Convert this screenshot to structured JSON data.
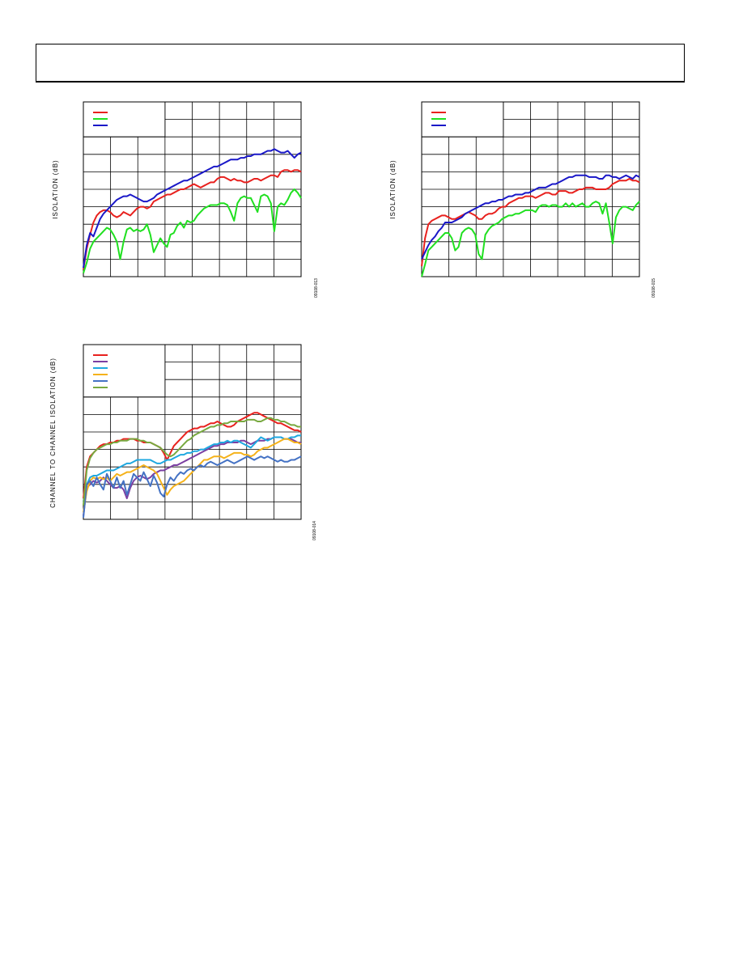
{
  "chart_data": [
    {
      "type": "line",
      "title": "",
      "xlabel": "",
      "ylabel": "ISOLATION (dB)",
      "figure_id": "09108-013",
      "legend_position": "top-left",
      "grid": true,
      "x_divisions": 8,
      "y_divisions": 10,
      "series": [
        {
          "color": "#e8211e",
          "values": [
            0.04,
            0.16,
            0.24,
            0.31,
            0.35,
            0.37,
            0.38,
            0.38,
            0.37,
            0.35,
            0.34,
            0.35,
            0.37,
            0.36,
            0.35,
            0.37,
            0.39,
            0.4,
            0.4,
            0.39,
            0.4,
            0.43,
            0.44,
            0.45,
            0.46,
            0.47,
            0.47,
            0.48,
            0.49,
            0.5,
            0.5,
            0.51,
            0.52,
            0.53,
            0.52,
            0.51,
            0.52,
            0.53,
            0.54,
            0.54,
            0.56,
            0.57,
            0.57,
            0.56,
            0.55,
            0.56,
            0.55,
            0.55,
            0.54,
            0.54,
            0.55,
            0.56,
            0.56,
            0.55,
            0.56,
            0.57,
            0.58,
            0.58,
            0.57,
            0.6,
            0.61,
            0.61,
            0.6,
            0.61,
            0.61,
            0.6
          ]
        },
        {
          "color": "#20e020",
          "values": [
            0.02,
            0.08,
            0.16,
            0.2,
            0.22,
            0.24,
            0.26,
            0.28,
            0.27,
            0.24,
            0.2,
            0.1,
            0.2,
            0.27,
            0.28,
            0.26,
            0.27,
            0.26,
            0.27,
            0.3,
            0.24,
            0.14,
            0.18,
            0.22,
            0.19,
            0.17,
            0.24,
            0.25,
            0.29,
            0.31,
            0.28,
            0.32,
            0.31,
            0.32,
            0.35,
            0.37,
            0.39,
            0.4,
            0.41,
            0.41,
            0.41,
            0.42,
            0.42,
            0.41,
            0.37,
            0.32,
            0.42,
            0.45,
            0.46,
            0.45,
            0.45,
            0.41,
            0.37,
            0.46,
            0.47,
            0.46,
            0.42,
            0.26,
            0.4,
            0.42,
            0.41,
            0.44,
            0.48,
            0.5,
            0.48,
            0.45
          ]
        },
        {
          "color": "#1a18c8",
          "values": [
            0.05,
            0.18,
            0.25,
            0.23,
            0.28,
            0.33,
            0.36,
            0.38,
            0.4,
            0.42,
            0.44,
            0.45,
            0.46,
            0.46,
            0.47,
            0.46,
            0.45,
            0.44,
            0.43,
            0.43,
            0.44,
            0.45,
            0.47,
            0.48,
            0.49,
            0.5,
            0.51,
            0.52,
            0.53,
            0.54,
            0.55,
            0.55,
            0.56,
            0.57,
            0.58,
            0.59,
            0.6,
            0.61,
            0.62,
            0.63,
            0.63,
            0.64,
            0.65,
            0.66,
            0.67,
            0.67,
            0.67,
            0.68,
            0.68,
            0.69,
            0.69,
            0.7,
            0.7,
            0.7,
            0.71,
            0.72,
            0.72,
            0.73,
            0.72,
            0.71,
            0.71,
            0.72,
            0.7,
            0.68,
            0.7,
            0.71
          ]
        }
      ]
    },
    {
      "type": "line",
      "title": "",
      "xlabel": "",
      "ylabel": "ISOLATION (dB)",
      "figure_id": "09108-015",
      "legend_position": "top-left",
      "grid": true,
      "x_divisions": 8,
      "y_divisions": 10,
      "series": [
        {
          "color": "#e8211e",
          "values": [
            0.06,
            0.22,
            0.3,
            0.32,
            0.33,
            0.34,
            0.35,
            0.35,
            0.34,
            0.33,
            0.33,
            0.34,
            0.35,
            0.36,
            0.37,
            0.36,
            0.35,
            0.33,
            0.33,
            0.35,
            0.36,
            0.36,
            0.37,
            0.39,
            0.4,
            0.4,
            0.42,
            0.43,
            0.44,
            0.45,
            0.45,
            0.46,
            0.46,
            0.46,
            0.45,
            0.46,
            0.47,
            0.48,
            0.48,
            0.47,
            0.47,
            0.49,
            0.49,
            0.49,
            0.48,
            0.48,
            0.49,
            0.5,
            0.5,
            0.51,
            0.51,
            0.51,
            0.5,
            0.5,
            0.5,
            0.5,
            0.51,
            0.53,
            0.54,
            0.55,
            0.55,
            0.55,
            0.56,
            0.55,
            0.55,
            0.54
          ]
        },
        {
          "color": "#20e020",
          "values": [
            0.0,
            0.07,
            0.15,
            0.17,
            0.19,
            0.21,
            0.23,
            0.25,
            0.25,
            0.22,
            0.15,
            0.17,
            0.25,
            0.27,
            0.28,
            0.27,
            0.24,
            0.13,
            0.1,
            0.24,
            0.27,
            0.29,
            0.3,
            0.31,
            0.33,
            0.34,
            0.35,
            0.35,
            0.36,
            0.36,
            0.37,
            0.38,
            0.38,
            0.38,
            0.37,
            0.4,
            0.41,
            0.41,
            0.4,
            0.41,
            0.41,
            0.4,
            0.4,
            0.42,
            0.4,
            0.42,
            0.4,
            0.41,
            0.42,
            0.4,
            0.4,
            0.42,
            0.43,
            0.42,
            0.36,
            0.42,
            0.31,
            0.19,
            0.34,
            0.38,
            0.4,
            0.4,
            0.39,
            0.38,
            0.41,
            0.43
          ]
        },
        {
          "color": "#1a18c8",
          "values": [
            0.1,
            0.14,
            0.18,
            0.21,
            0.23,
            0.26,
            0.28,
            0.31,
            0.31,
            0.31,
            0.32,
            0.33,
            0.34,
            0.36,
            0.37,
            0.38,
            0.39,
            0.4,
            0.41,
            0.42,
            0.42,
            0.43,
            0.43,
            0.44,
            0.44,
            0.45,
            0.46,
            0.46,
            0.47,
            0.47,
            0.47,
            0.48,
            0.48,
            0.49,
            0.5,
            0.51,
            0.51,
            0.51,
            0.52,
            0.53,
            0.53,
            0.54,
            0.55,
            0.56,
            0.57,
            0.57,
            0.58,
            0.58,
            0.58,
            0.58,
            0.57,
            0.57,
            0.57,
            0.56,
            0.56,
            0.58,
            0.58,
            0.57,
            0.57,
            0.56,
            0.57,
            0.58,
            0.57,
            0.56,
            0.58,
            0.57
          ]
        }
      ]
    },
    {
      "type": "line",
      "title": "",
      "xlabel": "",
      "ylabel": "CHANNEL TO CHANNEL ISOLATION (dB)",
      "figure_id": "09108-014",
      "legend_position": "top-left",
      "grid": true,
      "x_divisions": 8,
      "y_divisions": 10,
      "series": [
        {
          "color": "#e8211e",
          "values": [
            0.12,
            0.3,
            0.36,
            0.38,
            0.4,
            0.42,
            0.43,
            0.43,
            0.44,
            0.44,
            0.45,
            0.45,
            0.46,
            0.46,
            0.46,
            0.46,
            0.45,
            0.45,
            0.44,
            0.44,
            0.44,
            0.43,
            0.42,
            0.41,
            0.38,
            0.34,
            0.38,
            0.42,
            0.44,
            0.46,
            0.48,
            0.5,
            0.51,
            0.52,
            0.52,
            0.53,
            0.53,
            0.54,
            0.55,
            0.55,
            0.56,
            0.55,
            0.54,
            0.53,
            0.53,
            0.54,
            0.56,
            0.57,
            0.58,
            0.59,
            0.6,
            0.61,
            0.61,
            0.6,
            0.59,
            0.58,
            0.57,
            0.56,
            0.55,
            0.55,
            0.54,
            0.53,
            0.52,
            0.51,
            0.51,
            0.5
          ]
        },
        {
          "color": "#7b3fa2",
          "values": [
            0.02,
            0.18,
            0.2,
            0.22,
            0.21,
            0.22,
            0.24,
            0.22,
            0.2,
            0.18,
            0.18,
            0.19,
            0.17,
            0.12,
            0.18,
            0.22,
            0.24,
            0.25,
            0.24,
            0.23,
            0.24,
            0.26,
            0.27,
            0.28,
            0.28,
            0.29,
            0.3,
            0.31,
            0.31,
            0.32,
            0.33,
            0.34,
            0.35,
            0.36,
            0.37,
            0.38,
            0.39,
            0.4,
            0.41,
            0.42,
            0.42,
            0.43,
            0.43,
            0.44,
            0.44,
            0.44,
            0.44,
            0.45,
            0.45,
            0.44,
            0.43,
            0.44,
            0.45,
            0.45,
            0.45,
            0.46,
            0.46,
            0.47,
            0.47,
            0.47,
            0.46,
            0.46,
            0.46,
            0.45,
            0.44,
            0.44
          ]
        },
        {
          "color": "#1fa8e0",
          "values": [
            0.1,
            0.2,
            0.24,
            0.25,
            0.25,
            0.26,
            0.27,
            0.28,
            0.28,
            0.28,
            0.29,
            0.3,
            0.31,
            0.32,
            0.32,
            0.33,
            0.34,
            0.34,
            0.34,
            0.34,
            0.34,
            0.33,
            0.32,
            0.32,
            0.33,
            0.34,
            0.34,
            0.35,
            0.36,
            0.37,
            0.37,
            0.38,
            0.38,
            0.39,
            0.39,
            0.4,
            0.4,
            0.41,
            0.42,
            0.43,
            0.43,
            0.44,
            0.44,
            0.45,
            0.44,
            0.45,
            0.45,
            0.44,
            0.43,
            0.42,
            0.41,
            0.43,
            0.45,
            0.47,
            0.46,
            0.45,
            0.46,
            0.47,
            0.47,
            0.47,
            0.46,
            0.46,
            0.47,
            0.47,
            0.48,
            0.48
          ]
        },
        {
          "color": "#f5b21a",
          "values": [
            0.04,
            0.16,
            0.22,
            0.24,
            0.23,
            0.24,
            0.23,
            0.24,
            0.22,
            0.24,
            0.26,
            0.25,
            0.26,
            0.27,
            0.27,
            0.28,
            0.29,
            0.3,
            0.31,
            0.3,
            0.29,
            0.28,
            0.26,
            0.22,
            0.18,
            0.14,
            0.17,
            0.19,
            0.2,
            0.21,
            0.22,
            0.24,
            0.26,
            0.28,
            0.3,
            0.32,
            0.34,
            0.34,
            0.35,
            0.36,
            0.36,
            0.36,
            0.35,
            0.36,
            0.37,
            0.38,
            0.38,
            0.38,
            0.37,
            0.37,
            0.36,
            0.37,
            0.39,
            0.4,
            0.41,
            0.41,
            0.42,
            0.43,
            0.44,
            0.45,
            0.46,
            0.46,
            0.45,
            0.44,
            0.44,
            0.43
          ]
        },
        {
          "color": "#4472c4",
          "values": [
            0.01,
            0.2,
            0.22,
            0.19,
            0.24,
            0.2,
            0.17,
            0.26,
            0.22,
            0.18,
            0.24,
            0.18,
            0.22,
            0.14,
            0.2,
            0.26,
            0.24,
            0.22,
            0.27,
            0.23,
            0.19,
            0.25,
            0.21,
            0.15,
            0.13,
            0.2,
            0.24,
            0.22,
            0.25,
            0.27,
            0.26,
            0.28,
            0.29,
            0.28,
            0.3,
            0.31,
            0.3,
            0.32,
            0.33,
            0.32,
            0.31,
            0.32,
            0.33,
            0.34,
            0.33,
            0.32,
            0.33,
            0.34,
            0.35,
            0.36,
            0.35,
            0.34,
            0.35,
            0.36,
            0.35,
            0.36,
            0.35,
            0.34,
            0.33,
            0.34,
            0.33,
            0.33,
            0.34,
            0.34,
            0.35,
            0.36
          ]
        },
        {
          "color": "#78a940",
          "values": [
            0.08,
            0.28,
            0.35,
            0.38,
            0.4,
            0.41,
            0.42,
            0.43,
            0.43,
            0.44,
            0.44,
            0.45,
            0.45,
            0.45,
            0.46,
            0.46,
            0.46,
            0.45,
            0.45,
            0.44,
            0.44,
            0.43,
            0.42,
            0.41,
            0.39,
            0.37,
            0.36,
            0.37,
            0.39,
            0.41,
            0.43,
            0.45,
            0.46,
            0.48,
            0.49,
            0.5,
            0.51,
            0.52,
            0.53,
            0.53,
            0.54,
            0.54,
            0.55,
            0.55,
            0.56,
            0.56,
            0.56,
            0.56,
            0.56,
            0.57,
            0.57,
            0.57,
            0.56,
            0.56,
            0.57,
            0.58,
            0.58,
            0.57,
            0.57,
            0.56,
            0.56,
            0.55,
            0.54,
            0.54,
            0.53,
            0.53
          ]
        }
      ]
    }
  ]
}
